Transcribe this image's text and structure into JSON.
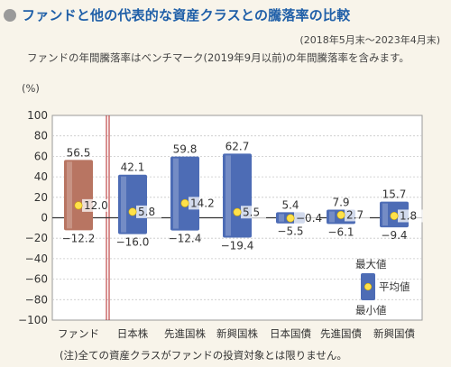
{
  "title": "ファンドと他の代表的な資産クラスとの騰落率の比較",
  "period": "(2018年5月末〜2023年4月末)",
  "note_top": "ファンドの年間騰落率はベンチマーク(2019年9月以前)の年間騰落率を含みます。",
  "unit": "(%)",
  "footer": "(注)全ての資産クラスがファンドの投資対象とは限りません。",
  "colors": {
    "fund_bar": "#b87562",
    "asset_bar": "#4d6cb5",
    "avg_dot": "#ffe14a",
    "separator": "#b32020",
    "plot_bg": "#ffffff"
  },
  "chart_data": {
    "type": "bar",
    "categories": [
      "ファンド",
      "日本株",
      "先進国株",
      "新興国株",
      "日本国債",
      "先進国債",
      "新興国債"
    ],
    "max": [
      56.5,
      42.1,
      59.8,
      62.7,
      5.4,
      7.9,
      15.7
    ],
    "min": [
      -12.2,
      -16.0,
      -12.4,
      -19.4,
      -5.5,
      -6.1,
      -9.4
    ],
    "avg": [
      12.0,
      5.8,
      14.2,
      5.5,
      -0.4,
      2.7,
      1.8
    ],
    "max_labels": [
      "56.5",
      "42.1",
      "59.8",
      "62.7",
      "5.4",
      "7.9",
      "15.7"
    ],
    "min_labels": [
      "−12.2",
      "−16.0",
      "−12.4",
      "−19.4",
      "−5.5",
      "−6.1",
      "−9.4"
    ],
    "avg_labels": [
      "12.0",
      "5.8",
      "14.2",
      "5.5",
      "−0.4",
      "2.7",
      "1.8"
    ],
    "yticks": [
      "100",
      "80",
      "60",
      "40",
      "20",
      "0",
      "−20",
      "−40",
      "−60",
      "−80",
      "−100"
    ],
    "ylim": [
      -100,
      100
    ],
    "grid": true,
    "legend": {
      "position": "bottom-right",
      "max_label": "最大値",
      "avg_label": "平均値",
      "min_label": "最小値"
    }
  }
}
